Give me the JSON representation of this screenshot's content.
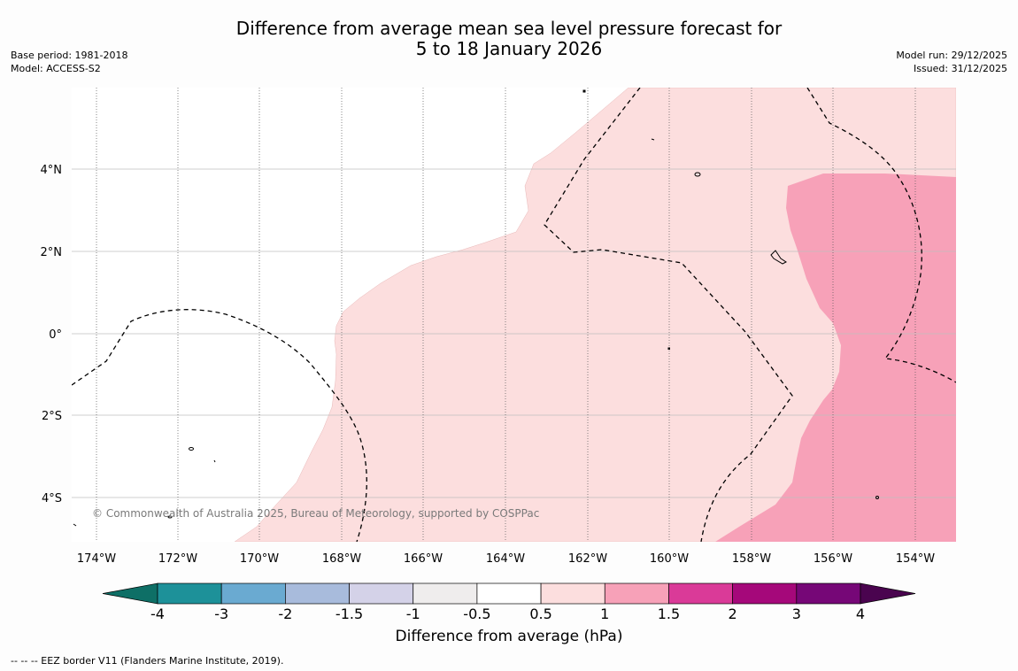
{
  "header": {
    "title_line1": "Difference from average mean sea level pressure forecast for",
    "title_line2": "5 to 18 January 2026",
    "base_period": "Base period: 1981-2018",
    "model": "Model: ACCESS-S2",
    "model_run": "Model run: 29/12/2025",
    "issued": "Issued: 31/12/2025"
  },
  "map": {
    "lon_labels": [
      "174°W",
      "172°W",
      "170°W",
      "168°W",
      "166°W",
      "164°W",
      "162°W",
      "160°W",
      "158°W",
      "156°W",
      "154°W"
    ],
    "lat_labels": [
      "4°N",
      "2°N",
      "0°",
      "2°S",
      "4°S"
    ],
    "copyright": "© Commonwealth of Australia 2025, Bureau of Meteorology, supported by COSPPac"
  },
  "colorbar": {
    "title": "Difference from average (hPa)",
    "tick_labels": [
      "-4",
      "-3",
      "-2",
      "-1.5",
      "-1",
      "-0.5",
      "0.5",
      "1",
      "1.5",
      "2",
      "3",
      "4"
    ],
    "colors": [
      "#0e6f66",
      "#1d9199",
      "#6aaad1",
      "#a8bbdc",
      "#d4d2e8",
      "#efeded",
      "#ffffff",
      "#fcdede",
      "#f7a1b8",
      "#da3a98",
      "#a5087a",
      "#760777",
      "#4a044f"
    ]
  },
  "footnote": "--  --  -- EEZ border V11 (Flanders Marine Institute, 2019)."
}
